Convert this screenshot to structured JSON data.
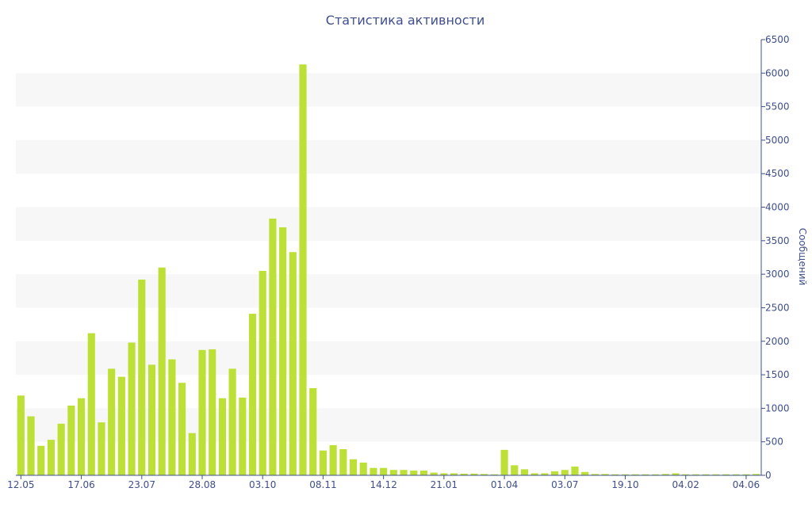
{
  "chart_data": {
    "type": "bar",
    "title": "Статистика активности",
    "ylabel": "Сообщений",
    "xlabel": "",
    "ylim": [
      0,
      6500
    ],
    "yticks": [
      0,
      500,
      1000,
      1500,
      2000,
      2500,
      3000,
      3500,
      4000,
      4500,
      5000,
      5500,
      6000,
      6500
    ],
    "y_axis_side": "right",
    "grid": "alternating horizontal bands",
    "bar_color": "#bce035",
    "band_color": "#f7f7f7",
    "axis_color": "#3e4f8c",
    "x_tick_labels": [
      {
        "index": 0,
        "label": "12.05"
      },
      {
        "index": 6,
        "label": "17.06"
      },
      {
        "index": 12,
        "label": "23.07"
      },
      {
        "index": 18,
        "label": "28.08"
      },
      {
        "index": 24,
        "label": "03.10"
      },
      {
        "index": 30,
        "label": "08.11"
      },
      {
        "index": 36,
        "label": "14.12"
      },
      {
        "index": 42,
        "label": "21.01"
      },
      {
        "index": 48,
        "label": "01.04"
      },
      {
        "index": 54,
        "label": "03.07"
      },
      {
        "index": 60,
        "label": "19.10"
      },
      {
        "index": 66,
        "label": "04.02"
      },
      {
        "index": 72,
        "label": "04.06"
      }
    ],
    "values": [
      1190,
      880,
      440,
      530,
      770,
      1040,
      1150,
      2120,
      790,
      1590,
      1470,
      1980,
      2920,
      1650,
      3100,
      1730,
      1380,
      630,
      1870,
      1880,
      1150,
      1590,
      1160,
      2410,
      3050,
      3830,
      3700,
      3330,
      6130,
      1300,
      370,
      450,
      390,
      240,
      190,
      110,
      110,
      80,
      80,
      70,
      70,
      40,
      30,
      30,
      25,
      25,
      20,
      15,
      380,
      150,
      90,
      30,
      30,
      60,
      80,
      130,
      50,
      20,
      20,
      15,
      15,
      15,
      15,
      15,
      20,
      30,
      15,
      15,
      15,
      15,
      15,
      15,
      15,
      20
    ]
  }
}
